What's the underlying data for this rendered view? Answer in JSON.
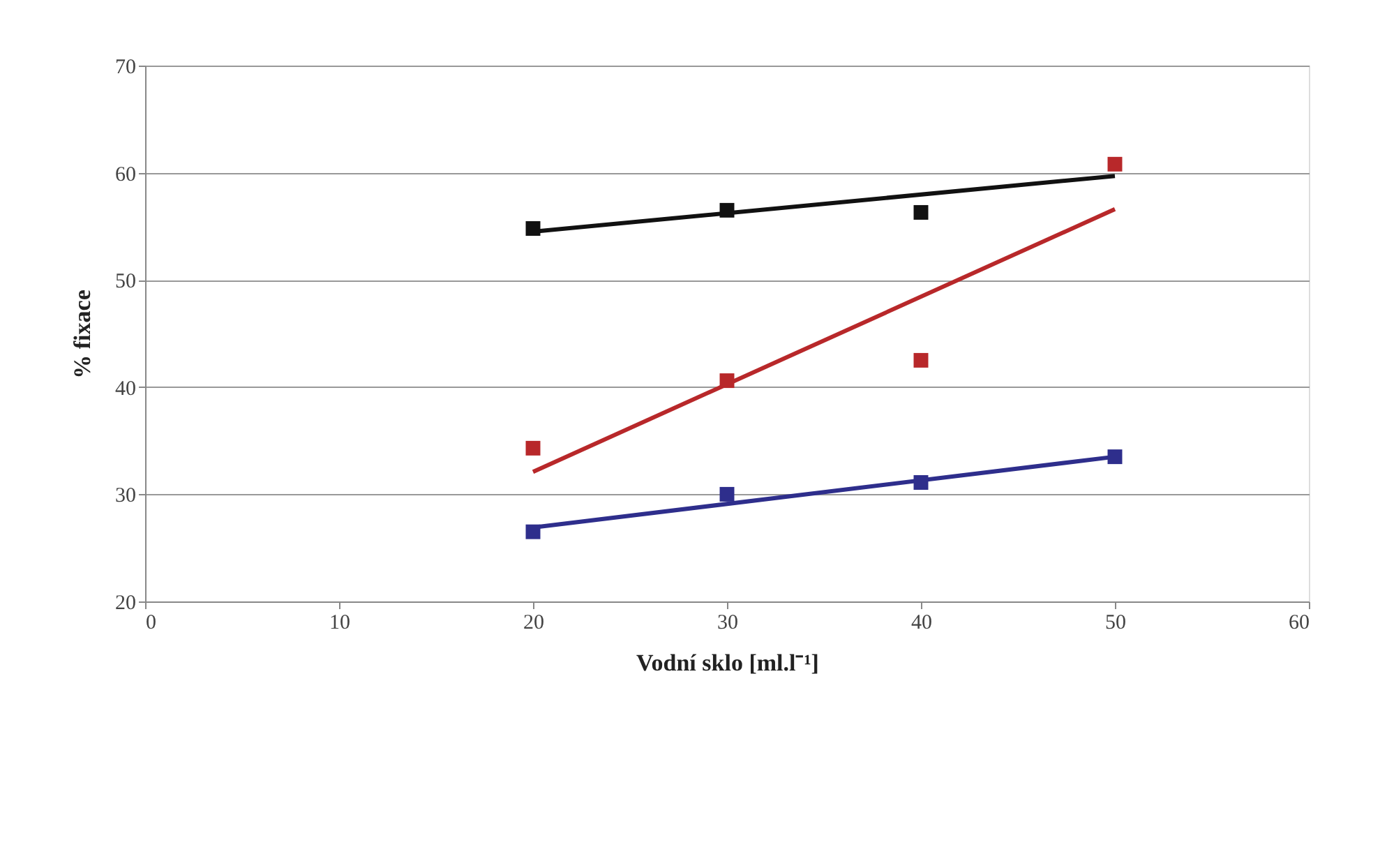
{
  "chart_data": {
    "type": "scatter",
    "xlabel": "Vodní sklo [ml.l⁻¹]",
    "ylabel": "% fixace",
    "xlim": [
      0,
      60
    ],
    "xticks": [
      0,
      10,
      20,
      30,
      40,
      50,
      60
    ],
    "ylim": [
      20,
      70
    ],
    "yticks": [
      20,
      30,
      40,
      50,
      60,
      70
    ],
    "grid": "y",
    "legend": false,
    "marker": "square",
    "series": [
      {
        "color": "#111111",
        "x": [
          20,
          30,
          40
        ],
        "values": [
          54.8,
          56.5,
          56.3
        ]
      },
      {
        "color": "#b8282a",
        "x": [
          20,
          30,
          40,
          50
        ],
        "values": [
          34.3,
          40.6,
          42.5,
          60.8
        ]
      },
      {
        "color": "#2e2e8c",
        "x": [
          20,
          30,
          40,
          50
        ],
        "values": [
          26.5,
          30.0,
          31.1,
          33.5
        ]
      },
      {
        "type": "line",
        "marker": "none",
        "line_style": "solid",
        "color": "#111111",
        "x": [
          20,
          50
        ],
        "values": [
          54.5,
          59.7
        ]
      },
      {
        "type": "line",
        "marker": "none",
        "line_style": "solid",
        "color": "#b8282a",
        "x": [
          20,
          50
        ],
        "values": [
          32.1,
          56.6
        ]
      },
      {
        "type": "line",
        "marker": "none",
        "line_style": "solid",
        "color": "#2e2e8c",
        "x": [
          20,
          50
        ],
        "values": [
          26.9,
          33.5
        ]
      }
    ]
  }
}
